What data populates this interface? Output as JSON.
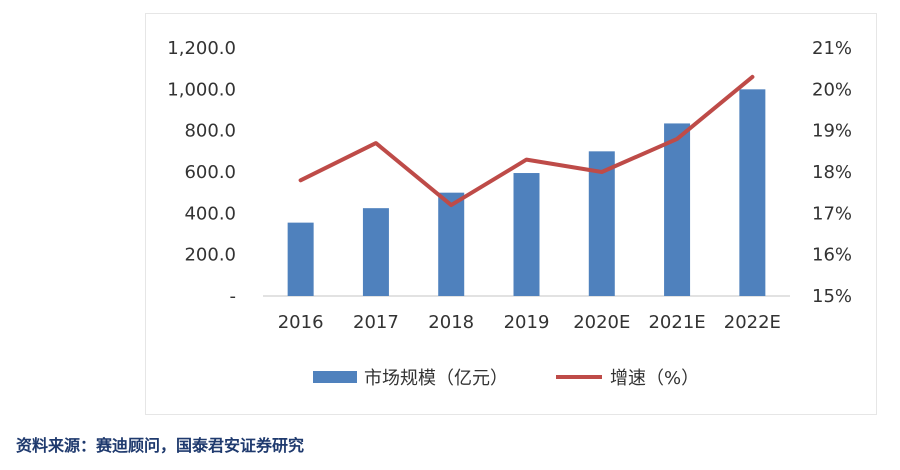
{
  "chart_data": {
    "type": "bar",
    "categories": [
      "2016",
      "2017",
      "2018",
      "2019",
      "2020E",
      "2021E",
      "2022E"
    ],
    "series": [
      {
        "name": "市场规模（亿元）",
        "type": "bar",
        "axis": "left",
        "color": "#4f81bd",
        "values": [
          355,
          425,
          500,
          595,
          700,
          835,
          1000
        ]
      },
      {
        "name": "增速（%）",
        "type": "line",
        "axis": "right",
        "color": "#be4b48",
        "values": [
          17.8,
          18.7,
          17.2,
          18.3,
          18.0,
          18.8,
          20.3
        ]
      }
    ],
    "y_left": {
      "lim": [
        0,
        1200
      ],
      "ticks": [
        0,
        200,
        400,
        600,
        800,
        1000,
        1200
      ],
      "tick_labels": [
        "-",
        "200.0",
        "400.0",
        "600.0",
        "800.0",
        "1,000.0",
        "1,200.0"
      ]
    },
    "y_right": {
      "lim": [
        15,
        21
      ],
      "ticks": [
        15,
        16,
        17,
        18,
        19,
        20,
        21
      ],
      "tick_labels": [
        "15%",
        "16%",
        "17%",
        "18%",
        "19%",
        "20%",
        "21%"
      ]
    },
    "legend_position": "bottom",
    "grid": false
  },
  "source": "资料来源：赛迪顾问，国泰君安证券研究"
}
